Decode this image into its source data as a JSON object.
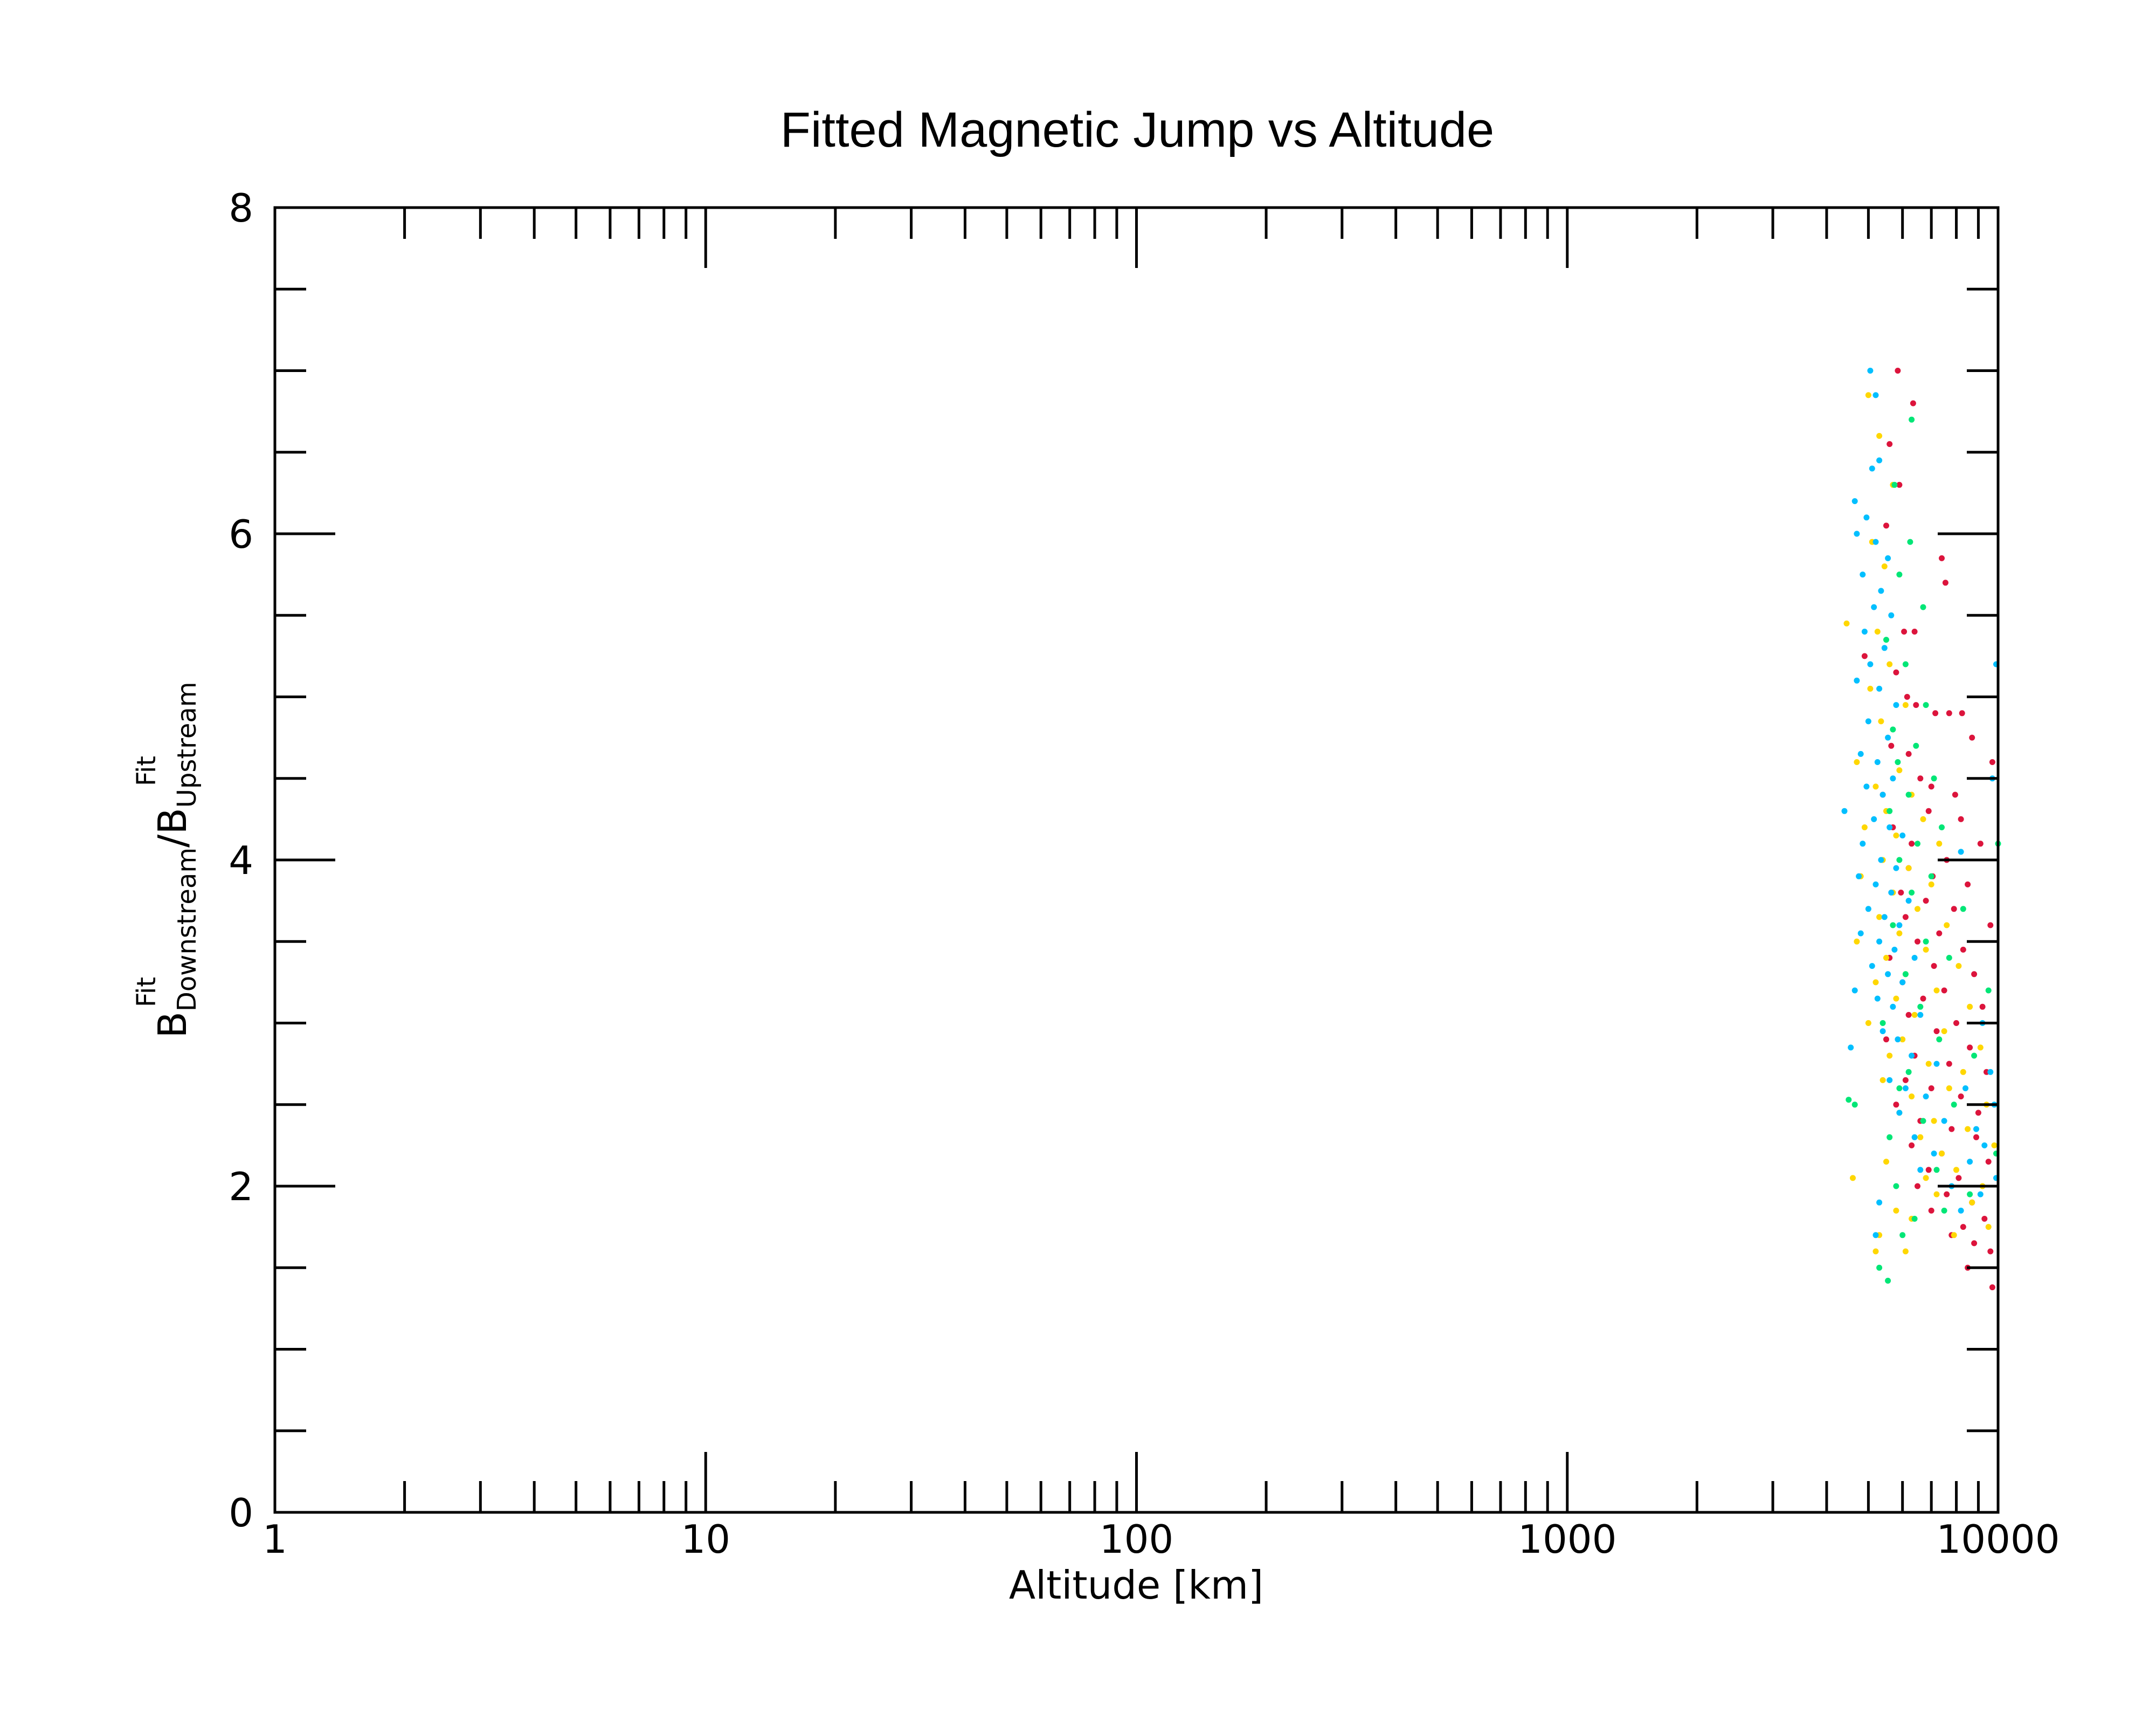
{
  "chart_data": {
    "type": "scatter",
    "title": "Fitted Magnetic Jump vs Altitude",
    "xlabel": "Altitude [km]",
    "ylabel": {
      "base1": "B",
      "sup1": "Fit",
      "sub1": "Downstream",
      "slash": "/",
      "base2": "B",
      "sup2": "Fit",
      "sub2": "Upstream"
    },
    "xscale": "log",
    "xlim": [
      1,
      10000
    ],
    "ylim": [
      0,
      8
    ],
    "grid": false,
    "x_tick_labels": [
      "1",
      "10",
      "100",
      "1000",
      "10000"
    ],
    "y_tick_labels": [
      "0",
      "2",
      "4",
      "6",
      "8"
    ],
    "series": [
      {
        "color": "#dc143c",
        "points": [
          [
            5850,
            7.0
          ],
          [
            6350,
            6.8
          ],
          [
            5600,
            6.55
          ],
          [
            5900,
            6.3
          ],
          [
            5500,
            6.05
          ],
          [
            7400,
            5.85
          ],
          [
            7550,
            5.7
          ],
          [
            6050,
            5.4
          ],
          [
            6400,
            5.4
          ],
          [
            4900,
            5.25
          ],
          [
            5800,
            5.15
          ],
          [
            6150,
            5.0
          ],
          [
            6450,
            4.95
          ],
          [
            7150,
            4.9
          ],
          [
            7700,
            4.9
          ],
          [
            8250,
            4.9
          ],
          [
            8700,
            4.75
          ],
          [
            5650,
            4.7
          ],
          [
            6200,
            4.65
          ],
          [
            9700,
            4.6
          ],
          [
            6600,
            4.5
          ],
          [
            7000,
            4.45
          ],
          [
            5400,
            4.4
          ],
          [
            7950,
            4.4
          ],
          [
            6900,
            4.3
          ],
          [
            8200,
            4.25
          ],
          [
            5700,
            4.2
          ],
          [
            6300,
            4.1
          ],
          [
            9100,
            4.1
          ],
          [
            7600,
            4.0
          ],
          [
            6200,
            3.95
          ],
          [
            7050,
            3.9
          ],
          [
            8500,
            3.85
          ],
          [
            5950,
            3.8
          ],
          [
            6800,
            3.75
          ],
          [
            7900,
            3.7
          ],
          [
            6100,
            3.65
          ],
          [
            9600,
            3.6
          ],
          [
            7300,
            3.55
          ],
          [
            6500,
            3.5
          ],
          [
            8300,
            3.45
          ],
          [
            5600,
            3.4
          ],
          [
            7100,
            3.35
          ],
          [
            8800,
            3.3
          ],
          [
            6000,
            3.25
          ],
          [
            7500,
            3.2
          ],
          [
            6700,
            3.15
          ],
          [
            9200,
            3.1
          ],
          [
            6200,
            3.05
          ],
          [
            8000,
            3.0
          ],
          [
            7200,
            2.95
          ],
          [
            5500,
            2.9
          ],
          [
            8600,
            2.85
          ],
          [
            6400,
            2.8
          ],
          [
            7700,
            2.75
          ],
          [
            9400,
            2.7
          ],
          [
            6100,
            2.65
          ],
          [
            7000,
            2.6
          ],
          [
            8200,
            2.55
          ],
          [
            5800,
            2.5
          ],
          [
            9000,
            2.45
          ],
          [
            6600,
            2.4
          ],
          [
            7800,
            2.35
          ],
          [
            8900,
            2.3
          ],
          [
            6300,
            2.25
          ],
          [
            7400,
            2.2
          ],
          [
            9500,
            2.15
          ],
          [
            6900,
            2.1
          ],
          [
            8100,
            2.05
          ],
          [
            6500,
            2.0
          ],
          [
            7600,
            1.95
          ],
          [
            8700,
            1.9
          ],
          [
            7000,
            1.85
          ],
          [
            9300,
            1.8
          ],
          [
            8300,
            1.75
          ],
          [
            7800,
            1.7
          ],
          [
            8800,
            1.65
          ],
          [
            9600,
            1.6
          ],
          [
            8500,
            1.5
          ],
          [
            9700,
            1.38
          ]
        ]
      },
      {
        "color": "#ffd700",
        "points": [
          [
            5000,
            6.85
          ],
          [
            5300,
            6.6
          ],
          [
            5700,
            6.3
          ],
          [
            5100,
            5.95
          ],
          [
            5450,
            5.8
          ],
          [
            4450,
            5.45
          ],
          [
            5250,
            5.4
          ],
          [
            5600,
            5.2
          ],
          [
            5050,
            5.05
          ],
          [
            6100,
            4.95
          ],
          [
            5350,
            4.85
          ],
          [
            4700,
            4.6
          ],
          [
            5900,
            4.55
          ],
          [
            5200,
            4.45
          ],
          [
            6300,
            4.4
          ],
          [
            5500,
            4.3
          ],
          [
            6700,
            4.25
          ],
          [
            4900,
            4.2
          ],
          [
            5800,
            4.15
          ],
          [
            7300,
            4.1
          ],
          [
            5400,
            4.0
          ],
          [
            6200,
            3.95
          ],
          [
            4800,
            3.9
          ],
          [
            7000,
            3.85
          ],
          [
            5700,
            3.8
          ],
          [
            6500,
            3.7
          ],
          [
            5300,
            3.65
          ],
          [
            7600,
            3.6
          ],
          [
            5900,
            3.55
          ],
          [
            4700,
            3.5
          ],
          [
            6800,
            3.45
          ],
          [
            5500,
            3.4
          ],
          [
            8100,
            3.35
          ],
          [
            6100,
            3.3
          ],
          [
            5200,
            3.25
          ],
          [
            7200,
            3.2
          ],
          [
            5800,
            3.15
          ],
          [
            8600,
            3.1
          ],
          [
            6400,
            3.05
          ],
          [
            5000,
            3.0
          ],
          [
            7500,
            2.95
          ],
          [
            6000,
            2.9
          ],
          [
            9100,
            2.85
          ],
          [
            5600,
            2.8
          ],
          [
            6900,
            2.75
          ],
          [
            8300,
            2.7
          ],
          [
            5400,
            2.65
          ],
          [
            7700,
            2.6
          ],
          [
            6300,
            2.55
          ],
          [
            9400,
            2.5
          ],
          [
            5900,
            2.45
          ],
          [
            7100,
            2.4
          ],
          [
            8500,
            2.35
          ],
          [
            6600,
            2.3
          ],
          [
            9800,
            2.25
          ],
          [
            7400,
            2.2
          ],
          [
            5500,
            2.15
          ],
          [
            8000,
            2.1
          ],
          [
            6800,
            2.05
          ],
          [
            4600,
            2.05
          ],
          [
            9200,
            2.0
          ],
          [
            7200,
            1.95
          ],
          [
            8700,
            1.9
          ],
          [
            5800,
            1.85
          ],
          [
            6300,
            1.8
          ],
          [
            9500,
            1.75
          ],
          [
            5300,
            1.7
          ],
          [
            7900,
            1.7
          ],
          [
            5200,
            1.6
          ],
          [
            6100,
            1.6
          ]
        ]
      },
      {
        "color": "#00bfff",
        "points": [
          [
            5050,
            7.0
          ],
          [
            5200,
            6.85
          ],
          [
            5100,
            6.4
          ],
          [
            5300,
            6.45
          ],
          [
            4650,
            6.2
          ],
          [
            4950,
            6.1
          ],
          [
            4700,
            6.0
          ],
          [
            5200,
            5.95
          ],
          [
            5550,
            5.85
          ],
          [
            4850,
            5.75
          ],
          [
            5350,
            5.65
          ],
          [
            5150,
            5.55
          ],
          [
            5650,
            5.5
          ],
          [
            4900,
            5.4
          ],
          [
            5450,
            5.3
          ],
          [
            5050,
            5.2
          ],
          [
            4700,
            5.1
          ],
          [
            5300,
            5.05
          ],
          [
            5800,
            4.95
          ],
          [
            9900,
            5.2
          ],
          [
            5000,
            4.85
          ],
          [
            5550,
            4.75
          ],
          [
            4800,
            4.65
          ],
          [
            5250,
            4.6
          ],
          [
            5700,
            4.5
          ],
          [
            9700,
            4.5
          ],
          [
            4950,
            4.45
          ],
          [
            5400,
            4.4
          ],
          [
            4400,
            4.3
          ],
          [
            5150,
            4.25
          ],
          [
            5600,
            4.2
          ],
          [
            6000,
            4.15
          ],
          [
            8200,
            4.05
          ],
          [
            4850,
            4.1
          ],
          [
            5350,
            4.0
          ],
          [
            5800,
            3.95
          ],
          [
            4750,
            3.9
          ],
          [
            5200,
            3.85
          ],
          [
            5650,
            3.8
          ],
          [
            6200,
            3.75
          ],
          [
            5000,
            3.7
          ],
          [
            5450,
            3.65
          ],
          [
            5900,
            3.6
          ],
          [
            4800,
            3.55
          ],
          [
            5300,
            3.5
          ],
          [
            5750,
            3.45
          ],
          [
            6400,
            3.4
          ],
          [
            5100,
            3.35
          ],
          [
            5550,
            3.3
          ],
          [
            6000,
            3.25
          ],
          [
            4650,
            3.2
          ],
          [
            5250,
            3.15
          ],
          [
            5700,
            3.1
          ],
          [
            6600,
            3.05
          ],
          [
            9200,
            3.0
          ],
          [
            5400,
            2.95
          ],
          [
            5850,
            2.9
          ],
          [
            4550,
            2.85
          ],
          [
            6300,
            2.8
          ],
          [
            7200,
            2.75
          ],
          [
            9600,
            2.7
          ],
          [
            5600,
            2.65
          ],
          [
            6100,
            2.6
          ],
          [
            8400,
            2.6
          ],
          [
            6800,
            2.55
          ],
          [
            9800,
            2.5
          ],
          [
            5900,
            2.45
          ],
          [
            7500,
            2.4
          ],
          [
            8900,
            2.35
          ],
          [
            6400,
            2.3
          ],
          [
            9300,
            2.25
          ],
          [
            7100,
            2.2
          ],
          [
            8600,
            2.15
          ],
          [
            6600,
            2.1
          ],
          [
            9900,
            2.05
          ],
          [
            7800,
            2.0
          ],
          [
            5300,
            1.9
          ],
          [
            9100,
            1.95
          ],
          [
            8200,
            1.85
          ],
          [
            5200,
            1.7
          ]
        ]
      },
      {
        "color": "#00e676",
        "points": [
          [
            6300,
            6.7
          ],
          [
            5750,
            6.3
          ],
          [
            6250,
            5.95
          ],
          [
            5900,
            5.75
          ],
          [
            6700,
            5.55
          ],
          [
            5500,
            5.35
          ],
          [
            6100,
            5.2
          ],
          [
            6800,
            4.95
          ],
          [
            5700,
            4.8
          ],
          [
            6450,
            4.7
          ],
          [
            5850,
            4.6
          ],
          [
            7100,
            4.5
          ],
          [
            6200,
            4.4
          ],
          [
            5600,
            4.3
          ],
          [
            7400,
            4.2
          ],
          [
            6500,
            4.1
          ],
          [
            10000,
            4.1
          ],
          [
            5900,
            4.0
          ],
          [
            7000,
            3.9
          ],
          [
            6300,
            3.8
          ],
          [
            8300,
            3.7
          ],
          [
            5700,
            3.6
          ],
          [
            6800,
            3.5
          ],
          [
            7700,
            3.4
          ],
          [
            6100,
            3.3
          ],
          [
            9500,
            3.2
          ],
          [
            6600,
            3.1
          ],
          [
            5400,
            3.0
          ],
          [
            7300,
            2.9
          ],
          [
            8800,
            2.8
          ],
          [
            6200,
            2.7
          ],
          [
            5900,
            2.6
          ],
          [
            7900,
            2.5
          ],
          [
            4500,
            2.53
          ],
          [
            4650,
            2.5
          ],
          [
            6700,
            2.4
          ],
          [
            5600,
            2.3
          ],
          [
            9900,
            2.2
          ],
          [
            7200,
            2.1
          ],
          [
            5800,
            2.0
          ],
          [
            8600,
            1.95
          ],
          [
            6400,
            1.8
          ],
          [
            7500,
            1.85
          ],
          [
            6000,
            1.7
          ],
          [
            5300,
            1.5
          ],
          [
            5550,
            1.42
          ]
        ]
      }
    ]
  }
}
